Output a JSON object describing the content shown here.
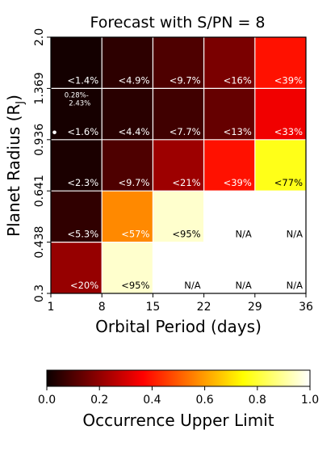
{
  "chart_data": {
    "type": "heatmap",
    "title": "Forecast with S/PN = 8",
    "xlabel": "Orbital Period (days)",
    "ylabel_main": "Planet Radius (R",
    "ylabel_sub": "J",
    "ylabel_close": ")",
    "x_ticks": [
      "1",
      "8",
      "15",
      "22",
      "29",
      "36"
    ],
    "y_ticks": [
      "0.3",
      "0.438",
      "0.641",
      "0.936",
      "1.369",
      "2.0"
    ],
    "rows": [
      {
        "y_range": [
          "1.369",
          "2.0"
        ],
        "cells": [
          {
            "label": "<1.4%",
            "value": 0.014
          },
          {
            "label": "<4.9%",
            "value": 0.049
          },
          {
            "label": "<9.7%",
            "value": 0.097
          },
          {
            "label": "<16%",
            "value": 0.16
          },
          {
            "label": "<39%",
            "value": 0.39
          }
        ]
      },
      {
        "y_range": [
          "0.936",
          "1.369"
        ],
        "cells": [
          {
            "label": "<1.6%",
            "value": 0.016,
            "note": "0.28%-\n2.43%"
          },
          {
            "label": "<4.4%",
            "value": 0.044
          },
          {
            "label": "<7.7%",
            "value": 0.077
          },
          {
            "label": "<13%",
            "value": 0.13
          },
          {
            "label": "<33%",
            "value": 0.33
          }
        ]
      },
      {
        "y_range": [
          "0.641",
          "0.936"
        ],
        "cells": [
          {
            "label": "<2.3%",
            "value": 0.023
          },
          {
            "label": "<9.7%",
            "value": 0.097
          },
          {
            "label": "<21%",
            "value": 0.21
          },
          {
            "label": "<39%",
            "value": 0.39
          },
          {
            "label": "<77%",
            "value": 0.77
          }
        ]
      },
      {
        "y_range": [
          "0.438",
          "0.641"
        ],
        "cells": [
          {
            "label": "<5.3%",
            "value": 0.053
          },
          {
            "label": "<57%",
            "value": 0.57
          },
          {
            "label": "<95%",
            "value": 0.95
          },
          {
            "label": "N/A",
            "value": null
          },
          {
            "label": "N/A",
            "value": null
          }
        ]
      },
      {
        "y_range": [
          "0.3",
          "0.438"
        ],
        "cells": [
          {
            "label": "<20%",
            "value": 0.2
          },
          {
            "label": "<95%",
            "value": 0.95
          },
          {
            "label": "N/A",
            "value": null
          },
          {
            "label": "N/A",
            "value": null
          },
          {
            "label": "N/A",
            "value": null
          }
        ]
      }
    ],
    "marker": {
      "x": 1.5,
      "y": 0.936
    },
    "colorbar": {
      "label": "Occurrence Upper Limit",
      "colormap": "hot",
      "ticks": [
        "0.0",
        "0.2",
        "0.4",
        "0.6",
        "0.8",
        "1.0"
      ],
      "range": [
        0,
        1
      ]
    }
  }
}
